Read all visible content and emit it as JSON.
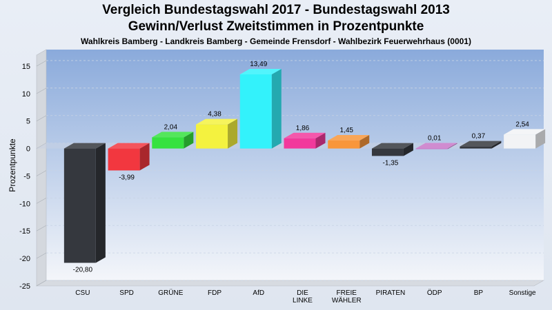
{
  "chart_data": {
    "type": "bar",
    "title": "Vergleich Bundestagswahl 2017 - Bundestagswahl 2013",
    "subtitle": "Gewinn/Verlust Zweitstimmen in Prozentpunkte",
    "subtitle2": "Wahlkreis Bamberg - Landkreis Bamberg - Gemeinde Frensdorf - Wahlbezirk Feuerwehrhaus (0001)",
    "xlabel": "",
    "ylabel": "Prozentpunkte",
    "ylim": [
      -25,
      17
    ],
    "yticks": [
      15,
      10,
      5,
      0,
      -5,
      -10,
      -15,
      -20,
      -25
    ],
    "grid": true,
    "categories": [
      {
        "label_lines": [
          "CSU"
        ],
        "value": -20.8,
        "value_label": "-20,80",
        "color": "#35383e"
      },
      {
        "label_lines": [
          "SPD"
        ],
        "value": -3.99,
        "value_label": "-3,99",
        "color": "#f2373f"
      },
      {
        "label_lines": [
          "GRÜNE"
        ],
        "value": 2.04,
        "value_label": "2,04",
        "color": "#36e23f"
      },
      {
        "label_lines": [
          "FDP"
        ],
        "value": 4.38,
        "value_label": "4,38",
        "color": "#f4f23f"
      },
      {
        "label_lines": [
          "AfD"
        ],
        "value": 13.49,
        "value_label": "13,49",
        "color": "#33f2fb"
      },
      {
        "label_lines": [
          "DIE",
          "LINKE"
        ],
        "value": 1.86,
        "value_label": "1,86",
        "color": "#f2399c"
      },
      {
        "label_lines": [
          "FREIE",
          "WÄHLER"
        ],
        "value": 1.45,
        "value_label": "1,45",
        "color": "#f8963b"
      },
      {
        "label_lines": [
          "PIRATEN"
        ],
        "value": -1.35,
        "value_label": "-1,35",
        "color": "#35383e"
      },
      {
        "label_lines": [
          "ÖDP"
        ],
        "value": 0.01,
        "value_label": "0,01",
        "color": "#c878c8"
      },
      {
        "label_lines": [
          "BP"
        ],
        "value": 0.37,
        "value_label": "0,37",
        "color": "#35383e"
      },
      {
        "label_lines": [
          "Sonstige"
        ],
        "value": 2.54,
        "value_label": "2,54",
        "color": "#f2f3f5"
      }
    ]
  }
}
